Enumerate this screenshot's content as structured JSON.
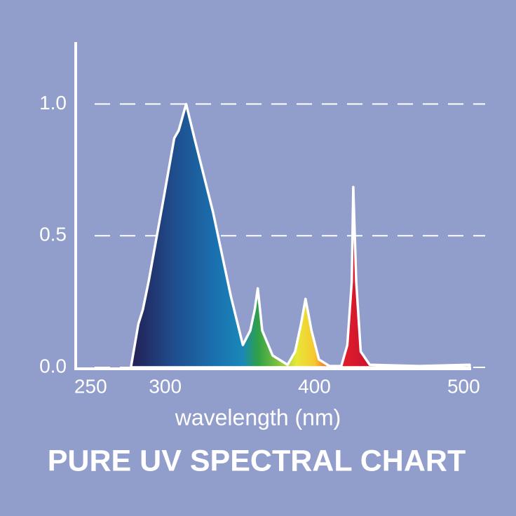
{
  "chart_data": {
    "type": "area",
    "title": "PURE UV SPECTRAL CHART",
    "x_label": "wavelength (nm)",
    "x": [
      277,
      282,
      285,
      289,
      299,
      306,
      309,
      314,
      320,
      332,
      344,
      352,
      357,
      360,
      362,
      365,
      372,
      382,
      387,
      391,
      394,
      398,
      403,
      410,
      418,
      422,
      425,
      426,
      428,
      431,
      437,
      470,
      504
    ],
    "values": [
      0,
      0.165,
      0.22,
      0.33,
      0.645,
      0.87,
      0.9,
      1.0,
      0.86,
      0.59,
      0.27,
      0.085,
      0.14,
      0.22,
      0.3,
      0.14,
      0.045,
      0.01,
      0.06,
      0.165,
      0.26,
      0.14,
      0.03,
      0.005,
      0.005,
      0.085,
      0.325,
      0.685,
      0.325,
      0.06,
      0.01,
      0.005,
      0.01
    ],
    "xlim": [
      240,
      505
    ],
    "xticks": [
      250,
      300,
      400,
      500
    ],
    "ylim": [
      0,
      1.23
    ],
    "yticks": [
      {
        "value": 0,
        "label": "0.0"
      },
      {
        "value": 0.5,
        "label": "0.5"
      },
      {
        "value": 1,
        "label": "1.0"
      }
    ],
    "grid": true,
    "line_color": "#ffffff",
    "fill_gradient": [
      {
        "x": 280,
        "color": "#22245a"
      },
      {
        "x": 305,
        "color": "#1f4c8c"
      },
      {
        "x": 335,
        "color": "#1a72b0"
      },
      {
        "x": 352,
        "color": "#1a88b8"
      },
      {
        "x": 362,
        "color": "#2fa048"
      },
      {
        "x": 375,
        "color": "#7cc040"
      },
      {
        "x": 388,
        "color": "#e6e838"
      },
      {
        "x": 400,
        "color": "#f7c830"
      },
      {
        "x": 416,
        "color": "#e3202c"
      },
      {
        "x": 440,
        "color": "#c8102e"
      }
    ]
  }
}
